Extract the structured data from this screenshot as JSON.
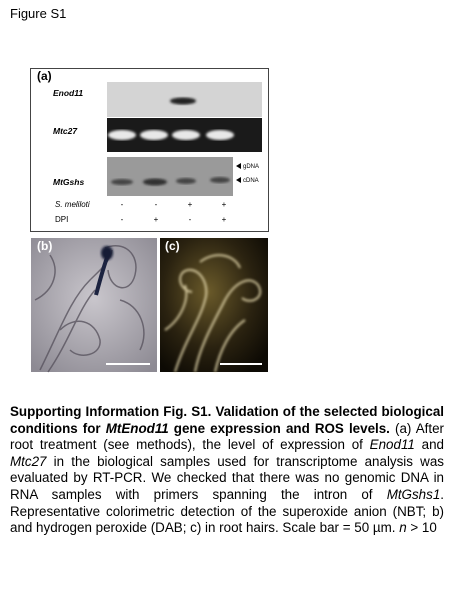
{
  "header": {
    "title": "Figure S1"
  },
  "panel_a": {
    "label": "(a)",
    "genes": [
      "Enod11",
      "Mtc27",
      "MtGshs"
    ],
    "band_markers": [
      "gDNA",
      "cDNA"
    ],
    "rows": [
      {
        "label": "S. meliloti",
        "signs": [
          "-",
          "-",
          "+",
          "+"
        ]
      },
      {
        "label": "DPI",
        "signs": [
          "-",
          "+",
          "-",
          "+"
        ]
      }
    ]
  },
  "panel_b": {
    "label": "(b)"
  },
  "panel_c": {
    "label": "(c)"
  },
  "caption": [
    "Supporting Information Fig. S1. Validation of the selected biological conditions for ",
    "MtEnod11",
    " gene expression and ROS levels.",
    " (a) After root treatment (see methods), the level of expression of ",
    "Enod11",
    " and ",
    "Mtc27",
    " in the biological samples used for transcriptome analysis was evaluated by RT-PCR. We checked that there was no genomic DNA in RNA samples with primers spanning the intron of ",
    "MtGshs1",
    ". Representative colorimetric detection of the superoxide anion (NBT; b) and hydrogen peroxide (DAB; c) in root hairs. Scale bar = 50 µm. ",
    "n",
    " > 10"
  ]
}
